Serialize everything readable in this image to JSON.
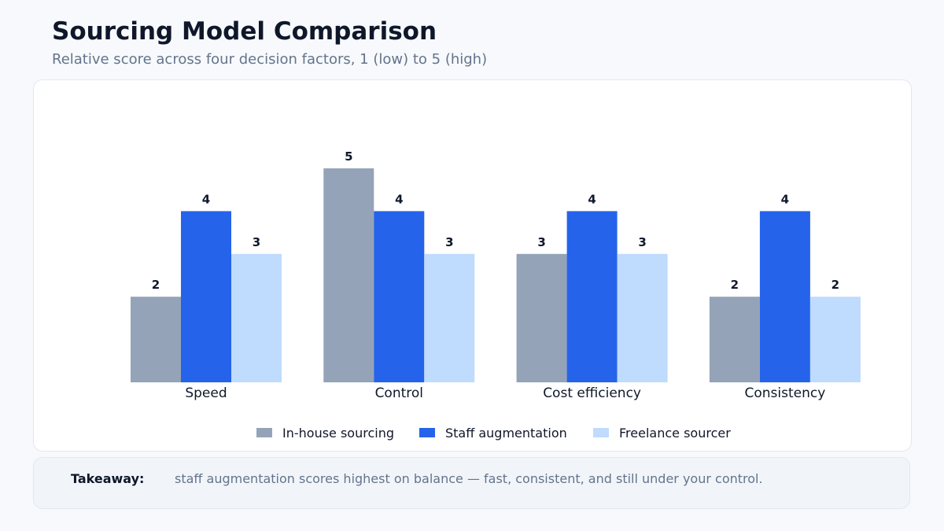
{
  "header": {
    "title": "Sourcing Model Comparison",
    "subtitle": "Relative score across four decision factors, 1 (low) to 5 (high)"
  },
  "chart_data": {
    "type": "bar",
    "title": "",
    "xlabel": "",
    "ylabel": "",
    "ylim": [
      0,
      5
    ],
    "grid": false,
    "legend_position": "bottom",
    "categories": [
      "Speed",
      "Control",
      "Cost efficiency",
      "Consistency"
    ],
    "series": [
      {
        "name": "In-house sourcing",
        "color": "#94a3b8",
        "values": [
          2,
          5,
          3,
          2
        ]
      },
      {
        "name": "Staff augmentation",
        "color": "#2563eb",
        "values": [
          4,
          4,
          4,
          4
        ]
      },
      {
        "name": "Freelance sourcer",
        "color": "#bfdbfe",
        "values": [
          3,
          3,
          3,
          2
        ]
      }
    ]
  },
  "takeaway": {
    "label": "Takeaway:",
    "text": "staff augmentation scores highest on balance — fast, consistent, and still under your control."
  }
}
